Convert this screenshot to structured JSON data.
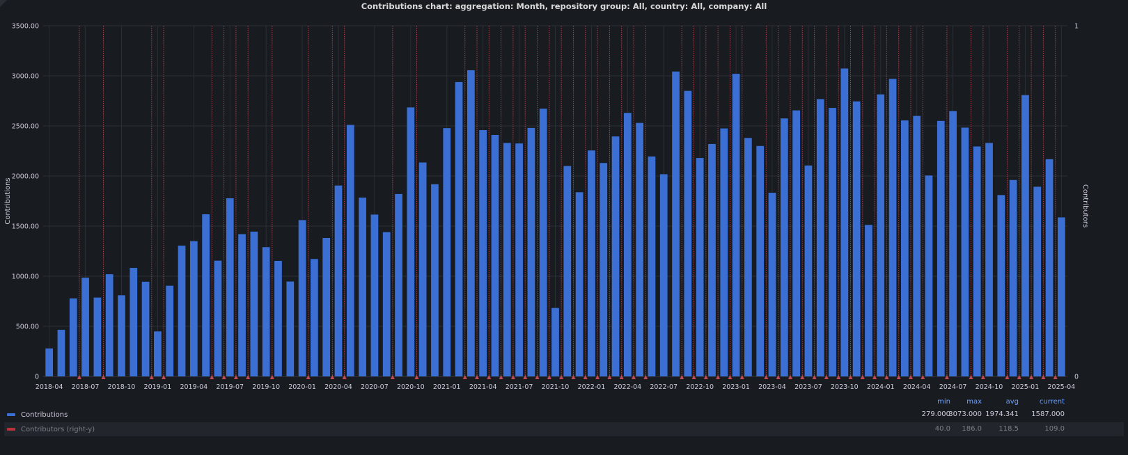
{
  "title": "Contributions chart: aggregation: Month, repository group: All, country: All, company: All",
  "colors": {
    "contributions": "#3b6fd4",
    "contributors": "#e0525b",
    "background": "#181b1f",
    "grid": "#2c2f35",
    "stat_header": "#6e9fff"
  },
  "chart_data": {
    "type": "bar",
    "title": "Contributions chart: aggregation: Month, repository group: All, country: All, company: All",
    "ylabel": "Contributions",
    "ylabel_right": "Contributors",
    "ylim": [
      0,
      3500
    ],
    "ylim_right": [
      0,
      1
    ],
    "yticks": [
      "0",
      "500.00",
      "1000.00",
      "1500.00",
      "2000.00",
      "2500.00",
      "3000.00",
      "3500.00"
    ],
    "yticks_right": [
      "0",
      "1"
    ],
    "xticks": [
      "2018-04",
      "2018-07",
      "2018-10",
      "2019-01",
      "2019-04",
      "2019-07",
      "2019-10",
      "2020-01",
      "2020-04",
      "2020-07",
      "2020-10",
      "2021-01",
      "2021-04",
      "2021-07",
      "2021-10",
      "2022-01",
      "2022-04",
      "2022-07",
      "2022-10",
      "2023-01",
      "2023-04",
      "2023-07",
      "2023-10",
      "2024-01",
      "2024-04",
      "2024-07",
      "2024-10",
      "2025-01",
      "2025-04"
    ],
    "grid": true,
    "legend_placement": "bottom",
    "categories": [
      "2018-04",
      "2018-05",
      "2018-06",
      "2018-07",
      "2018-08",
      "2018-09",
      "2018-10",
      "2018-11",
      "2018-12",
      "2019-01",
      "2019-02",
      "2019-03",
      "2019-04",
      "2019-05",
      "2019-06",
      "2019-07",
      "2019-08",
      "2019-09",
      "2019-10",
      "2019-11",
      "2019-12",
      "2020-01",
      "2020-02",
      "2020-03",
      "2020-04",
      "2020-05",
      "2020-06",
      "2020-07",
      "2020-08",
      "2020-09",
      "2020-10",
      "2020-11",
      "2020-12",
      "2021-01",
      "2021-02",
      "2021-03",
      "2021-04",
      "2021-05",
      "2021-06",
      "2021-07",
      "2021-08",
      "2021-09",
      "2021-10",
      "2021-11",
      "2021-12",
      "2022-01",
      "2022-02",
      "2022-03",
      "2022-04",
      "2022-05",
      "2022-06",
      "2022-07",
      "2022-08",
      "2022-09",
      "2022-10",
      "2022-11",
      "2022-12",
      "2023-01",
      "2023-02",
      "2023-03",
      "2023-04",
      "2023-05",
      "2023-06",
      "2023-07",
      "2023-08",
      "2023-09",
      "2023-10",
      "2023-11",
      "2023-12",
      "2024-01",
      "2024-02",
      "2024-03",
      "2024-04",
      "2024-05",
      "2024-06",
      "2024-07",
      "2024-08",
      "2024-09",
      "2024-10",
      "2024-11",
      "2024-12",
      "2025-01",
      "2025-02",
      "2025-03",
      "2025-04"
    ],
    "series": [
      {
        "name": "Contributions",
        "axis": "left",
        "type": "bar",
        "values": [
          279,
          465,
          778,
          985,
          787,
          1020,
          810,
          1083,
          945,
          449,
          905,
          1305,
          1350,
          1618,
          1155,
          1778,
          1420,
          1445,
          1290,
          1153,
          947,
          1560,
          1172,
          1382,
          1905,
          2510,
          1785,
          1615,
          1440,
          1820,
          2685,
          2135,
          1918,
          2478,
          2938,
          3056,
          2458,
          2410,
          2330,
          2325,
          2480,
          2672,
          683,
          2100,
          1838,
          2255,
          2130,
          2395,
          2630,
          2530,
          2195,
          2018,
          3043,
          2850,
          2180,
          2320,
          2475,
          3020,
          2380,
          2300,
          1833,
          2575,
          2655,
          2105,
          2768,
          2680,
          3073,
          2745,
          1512,
          2815,
          2970,
          2555,
          2600,
          2005,
          2550,
          2648,
          2483,
          2295,
          2330,
          1810,
          1960,
          2808,
          1893,
          2168,
          1587
        ]
      },
      {
        "name": "Contributors (right-y)",
        "axis": "right",
        "type": "line",
        "marker_months": [
          "2018-07",
          "2018-09",
          "2019-01",
          "2019-02",
          "2019-06",
          "2019-07",
          "2019-08",
          "2019-09",
          "2019-11",
          "2020-02",
          "2020-04",
          "2020-05",
          "2020-09",
          "2020-11",
          "2021-03",
          "2021-04",
          "2021-05",
          "2021-06",
          "2021-07",
          "2021-08",
          "2021-09",
          "2021-10",
          "2021-11",
          "2021-12",
          "2022-01",
          "2022-02",
          "2022-03",
          "2022-04",
          "2022-05",
          "2022-06",
          "2022-09",
          "2022-10",
          "2022-11",
          "2022-12",
          "2023-01",
          "2023-02",
          "2023-04",
          "2023-05",
          "2023-06",
          "2023-07",
          "2023-08",
          "2023-09",
          "2023-10",
          "2023-11",
          "2023-12",
          "2024-01",
          "2024-02",
          "2024-03",
          "2024-04",
          "2024-05",
          "2024-07",
          "2024-09",
          "2024-10",
          "2024-12",
          "2025-01",
          "2025-02",
          "2025-03",
          "2025-04"
        ]
      }
    ]
  },
  "legend": {
    "headers": {
      "min": "min",
      "max": "max",
      "avg": "avg",
      "current": "current"
    },
    "items": [
      {
        "label": "Contributions",
        "min": "279.000",
        "max": "3073.000",
        "avg": "1974.341",
        "current": "1587.000"
      },
      {
        "label": "Contributors (right-y)",
        "min": "40.0",
        "max": "186.0",
        "avg": "118.5",
        "current": "109.0"
      }
    ]
  }
}
